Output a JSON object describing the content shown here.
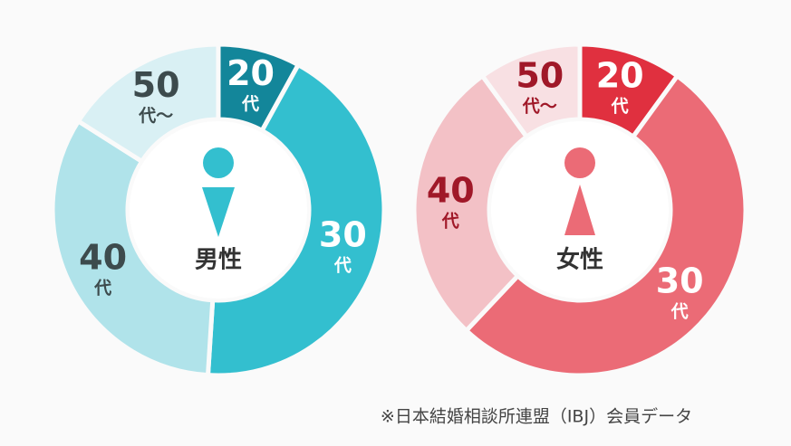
{
  "chart_data": [
    {
      "type": "donut",
      "center_label": "男性",
      "gender": "male",
      "categories": [
        "20",
        "30",
        "40",
        "50"
      ],
      "category_suffixes": [
        "代",
        "代",
        "代",
        "代～"
      ],
      "values": [
        8,
        43,
        33,
        16
      ],
      "colors": [
        "#13869a",
        "#33bfcf",
        "#b0e3ea",
        "#d9f0f4"
      ],
      "label_colors": [
        "#ffffff",
        "#ffffff",
        "#3d4b4d",
        "#3d4b4d"
      ]
    },
    {
      "type": "donut",
      "center_label": "女性",
      "gender": "female",
      "categories": [
        "20",
        "30",
        "40",
        "50"
      ],
      "category_suffixes": [
        "代",
        "代",
        "代",
        "代～"
      ],
      "values": [
        10,
        52,
        28,
        10
      ],
      "colors": [
        "#e0303f",
        "#eb6b76",
        "#f3c1c6",
        "#f8e0e3"
      ],
      "label_colors": [
        "#ffffff",
        "#ffffff",
        "#a01828",
        "#a01828"
      ]
    }
  ],
  "note": "※日本結婚相談所連盟（IBJ）会員データ"
}
